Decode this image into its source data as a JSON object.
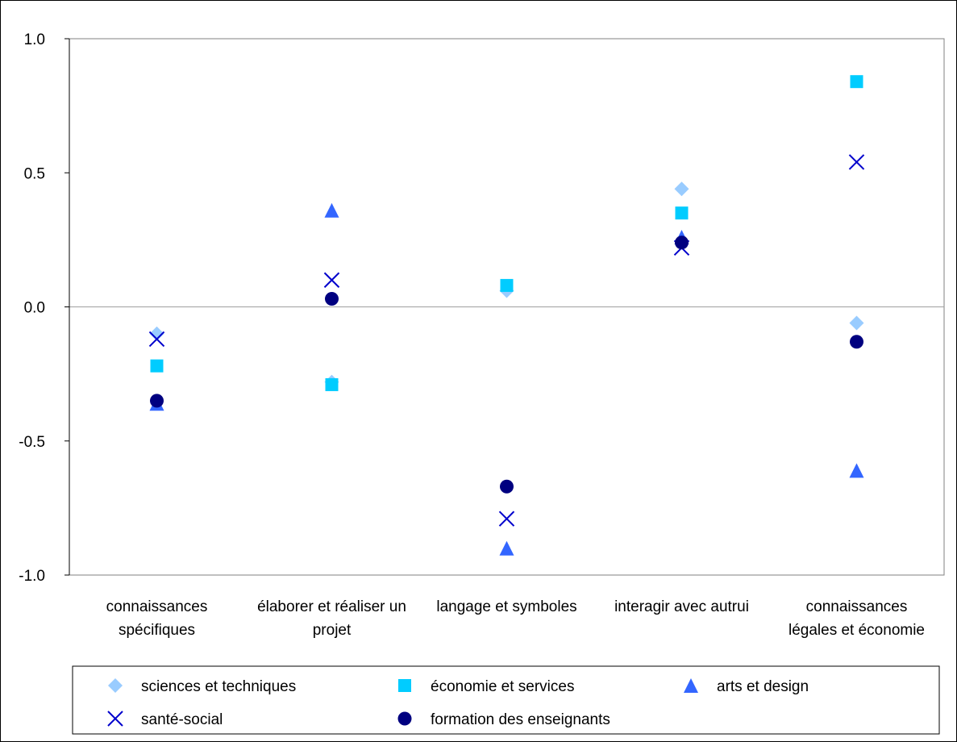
{
  "chart_data": {
    "type": "scatter",
    "title": "",
    "xlabel": "",
    "ylabel": "",
    "categories": [
      "connaissances spécifiques",
      "élaborer et réaliser un projet",
      "langage et symboles",
      "interagir avec autrui",
      "connaissances légales et économie"
    ],
    "ylim": [
      -1.0,
      1.0
    ],
    "yticks": [
      "1.0",
      "0.5",
      "0.0",
      "-0.5",
      "-1.0"
    ],
    "ytick_values": [
      1.0,
      0.5,
      0.0,
      -0.5,
      -1.0
    ],
    "grid": false,
    "zero_line": true,
    "legend_position": "bottom",
    "series": [
      {
        "name": "sciences et techniques",
        "marker": "diamond",
        "color": "#99ccff",
        "values": [
          -0.1,
          -0.28,
          0.06,
          0.44,
          -0.06
        ]
      },
      {
        "name": "économie et services",
        "marker": "square",
        "color": "#00ccff",
        "values": [
          -0.22,
          -0.29,
          0.08,
          0.35,
          0.84
        ]
      },
      {
        "name": "arts et design",
        "marker": "triangle",
        "color": "#3366ff",
        "values": [
          -0.36,
          0.36,
          -0.9,
          0.26,
          -0.61
        ]
      },
      {
        "name": "santé-social",
        "marker": "x",
        "color": "#0000cc",
        "values": [
          -0.12,
          0.1,
          -0.79,
          0.22,
          0.54
        ]
      },
      {
        "name": "formation des enseignants",
        "marker": "circle",
        "color": "#000080",
        "values": [
          -0.35,
          0.03,
          -0.67,
          0.24,
          -0.13
        ]
      }
    ]
  }
}
